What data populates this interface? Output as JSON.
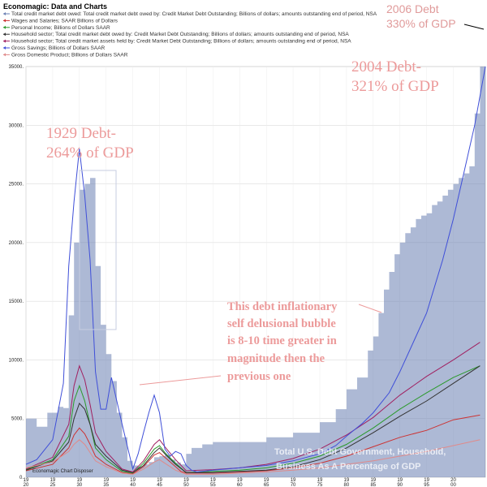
{
  "chart_data": {
    "type": "line",
    "title": "Economagic: Data and Charts",
    "ylim": [
      0,
      35000
    ],
    "xlim": [
      1920,
      2006
    ],
    "y_ticks": [
      "0.",
      "5000.",
      "10000.",
      "15000.",
      "20000.",
      "25000.",
      "30000.",
      "35000."
    ],
    "x_ticks": [
      "19 20",
      "19 25",
      "19 30",
      "19 35",
      "19 40",
      "19 45",
      "19 50",
      "19 55",
      "19 60",
      "19 65",
      "19 70",
      "19 75",
      "19 80",
      "19 85",
      "19 90",
      "19 95",
      "20 00"
    ],
    "watermark": "Economagic Chart Disposer",
    "grid": true,
    "legend_position": "top-left",
    "series": [
      {
        "name": "Total credit market debt owed: Total credit market debt owed by: Credit Market Debt Outstanding; Billions of dollars; amounts outstanding end of period, NSA",
        "color": "#6a7fb3",
        "style": "area",
        "x": [
          1920,
          1922,
          1924,
          1926,
          1927,
          1928,
          1929,
          1930,
          1931,
          1932,
          1933,
          1934,
          1935,
          1936,
          1937,
          1938,
          1939,
          1940,
          1941,
          1942,
          1943,
          1944,
          1945,
          1946,
          1947,
          1948,
          1949,
          1950,
          1951,
          1952,
          1953,
          1955,
          1960,
          1965,
          1970,
          1975,
          1978,
          1980,
          1982,
          1984,
          1985,
          1986,
          1987,
          1988,
          1989,
          1990,
          1991,
          1992,
          1993,
          1994,
          1995,
          1996,
          1997,
          1998,
          1999,
          2000,
          2001,
          2002,
          2003,
          2004,
          2005
        ],
        "y": [
          5000,
          4300,
          5500,
          6000,
          5900,
          13800,
          20000,
          24500,
          25000,
          25500,
          18000,
          13000,
          10500,
          8200,
          5500,
          3400,
          1400,
          1000,
          900,
          1100,
          1300,
          1700,
          1800,
          1900,
          1500,
          1250,
          1100,
          2000,
          2500,
          2500,
          2800,
          3000,
          3000,
          3400,
          3800,
          4700,
          5800,
          7500,
          8500,
          10800,
          12000,
          14000,
          16000,
          17500,
          19000,
          20000,
          20800,
          21300,
          22000,
          22300,
          22500,
          23200,
          23500,
          24000,
          24500,
          25000,
          25500,
          25900,
          26500,
          31000,
          35000
        ]
      },
      {
        "name": "Wages and Salaries; SAAR Billions of Dollars",
        "color": "#cc3333",
        "x": [
          1920,
          1925,
          1928,
          1929,
          1930,
          1931,
          1932,
          1933,
          1935,
          1938,
          1940,
          1942,
          1944,
          1945,
          1946,
          1948,
          1949,
          1950,
          1955,
          1960,
          1965,
          1970,
          1975,
          1980,
          1985,
          1990,
          1995,
          2000,
          2005
        ],
        "y": [
          550,
          1100,
          2500,
          3600,
          4200,
          3700,
          2800,
          1800,
          1100,
          400,
          300,
          900,
          1900,
          2100,
          1700,
          900,
          500,
          350,
          350,
          450,
          550,
          800,
          1200,
          1800,
          2600,
          3400,
          4000,
          4900,
          5300
        ]
      },
      {
        "name": "Personal Income; Billions of Dollars SAAR",
        "color": "#2a9a2a",
        "x": [
          1920,
          1925,
          1928,
          1929,
          1930,
          1931,
          1932,
          1933,
          1935,
          1938,
          1940,
          1942,
          1944,
          1945,
          1946,
          1948,
          1950,
          1955,
          1960,
          1965,
          1970,
          1975,
          1980,
          1985,
          1990,
          1995,
          2000,
          2005
        ],
        "y": [
          650,
          1500,
          3500,
          6500,
          7800,
          6500,
          4500,
          2500,
          1500,
          500,
          350,
          1200,
          2400,
          2700,
          2100,
          1200,
          400,
          500,
          600,
          800,
          1200,
          1800,
          2800,
          4200,
          5800,
          7200,
          8500,
          9500
        ]
      },
      {
        "name": "Household sector; Total credit market debt owed by: Credit Market Debt Outstanding; Billions of dollars; amounts outstanding end of period, NSA",
        "color": "#333333",
        "x": [
          1920,
          1925,
          1928,
          1929,
          1930,
          1931,
          1932,
          1933,
          1935,
          1938,
          1940,
          1942,
          1944,
          1945,
          1946,
          1948,
          1950,
          1955,
          1960,
          1965,
          1970,
          1975,
          1980,
          1985,
          1990,
          1995,
          2000,
          2005
        ],
        "y": [
          600,
          1400,
          3000,
          5000,
          6300,
          5800,
          4500,
          2800,
          1800,
          600,
          400,
          1000,
          2100,
          2500,
          2000,
          1100,
          400,
          400,
          500,
          600,
          900,
          1500,
          2500,
          3800,
          5200,
          6500,
          8000,
          9500
        ]
      },
      {
        "name": "Household sector; Total credit market assets held by: Credit Market Debt Outstanding; Billions of dollars; amounts outstanding end of period, NSA",
        "color": "#a02060",
        "x": [
          1920,
          1925,
          1928,
          1929,
          1930,
          1931,
          1932,
          1933,
          1935,
          1938,
          1940,
          1942,
          1944,
          1945,
          1946,
          1948,
          1950,
          1955,
          1960,
          1965,
          1970,
          1975,
          1980,
          1985,
          1990,
          1995,
          2000,
          2005
        ],
        "y": [
          700,
          1700,
          4500,
          7800,
          9500,
          8300,
          6200,
          3800,
          2200,
          700,
          450,
          1400,
          2800,
          3200,
          2600,
          1500,
          550,
          650,
          800,
          1100,
          1600,
          2400,
          3600,
          5100,
          7000,
          8600,
          10000,
          11500
        ]
      },
      {
        "name": "Gross Savings; Billions of Dollars SAAR",
        "color": "#3f4fd8",
        "x": [
          1920,
          1922,
          1925,
          1927,
          1928,
          1929,
          1930,
          1931,
          1932,
          1933,
          1934,
          1935,
          1936,
          1938,
          1940,
          1941,
          1942,
          1943,
          1944,
          1945,
          1946,
          1947,
          1948,
          1949,
          1950,
          1951,
          1952,
          1955,
          1960,
          1965,
          1970,
          1975,
          1978,
          1980,
          1983,
          1985,
          1988,
          1990,
          1992,
          1995,
          1998,
          2000,
          2002,
          2004,
          2006
        ],
        "y": [
          1100,
          1500,
          3200,
          8000,
          18000,
          23500,
          28000,
          24000,
          18500,
          9000,
          5800,
          5800,
          8500,
          4500,
          700,
          2000,
          3800,
          5500,
          7000,
          5500,
          2400,
          1800,
          2200,
          2000,
          1000,
          600,
          450,
          600,
          800,
          1000,
          1400,
          2000,
          2700,
          3500,
          4600,
          5500,
          7200,
          9000,
          11000,
          14000,
          18500,
          22000,
          26000,
          30000,
          35000
        ]
      },
      {
        "name": "Gross Domestic Product; Billions of Dollars SAAR",
        "color": "#e08a8a",
        "x": [
          1920,
          1925,
          1928,
          1929,
          1930,
          1931,
          1932,
          1933,
          1935,
          1938,
          1940,
          1942,
          1944,
          1945,
          1946,
          1948,
          1950,
          1955,
          1960,
          1965,
          1970,
          1975,
          1980,
          1985,
          1990,
          1995,
          2000,
          2005
        ],
        "y": [
          800,
          1300,
          2200,
          2800,
          3200,
          2800,
          2100,
          1400,
          900,
          350,
          250,
          700,
          1300,
          1500,
          1200,
          600,
          250,
          250,
          350,
          450,
          600,
          800,
          1100,
          1400,
          1800,
          2200,
          2700,
          3200
        ]
      }
    ],
    "annotations": [
      {
        "text": "2006 Debt",
        "style": "sans"
      },
      {
        "text": "330% of GDP",
        "style": "sans"
      },
      {
        "text": "2004 Debt-",
        "style": "serif"
      },
      {
        "text": "321% of GDP",
        "style": "serif"
      },
      {
        "text": "1929 Debt-",
        "style": "serif"
      },
      {
        "text": "264% of GDP",
        "style": "serif"
      },
      {
        "text": "This debt inflationary",
        "style": "serif-bold"
      },
      {
        "text": "self delusional bubble",
        "style": "serif-bold"
      },
      {
        "text": "is 8-10 time greater in",
        "style": "serif-bold"
      },
      {
        "text": "magnitude then the",
        "style": "serif-bold"
      },
      {
        "text": "previous one",
        "style": "serif-bold"
      },
      {
        "text": "Total U.S. Debt Government, Household,",
        "style": "watermark"
      },
      {
        "text": "Business As A Percentage of GDP",
        "style": "watermark"
      }
    ]
  }
}
